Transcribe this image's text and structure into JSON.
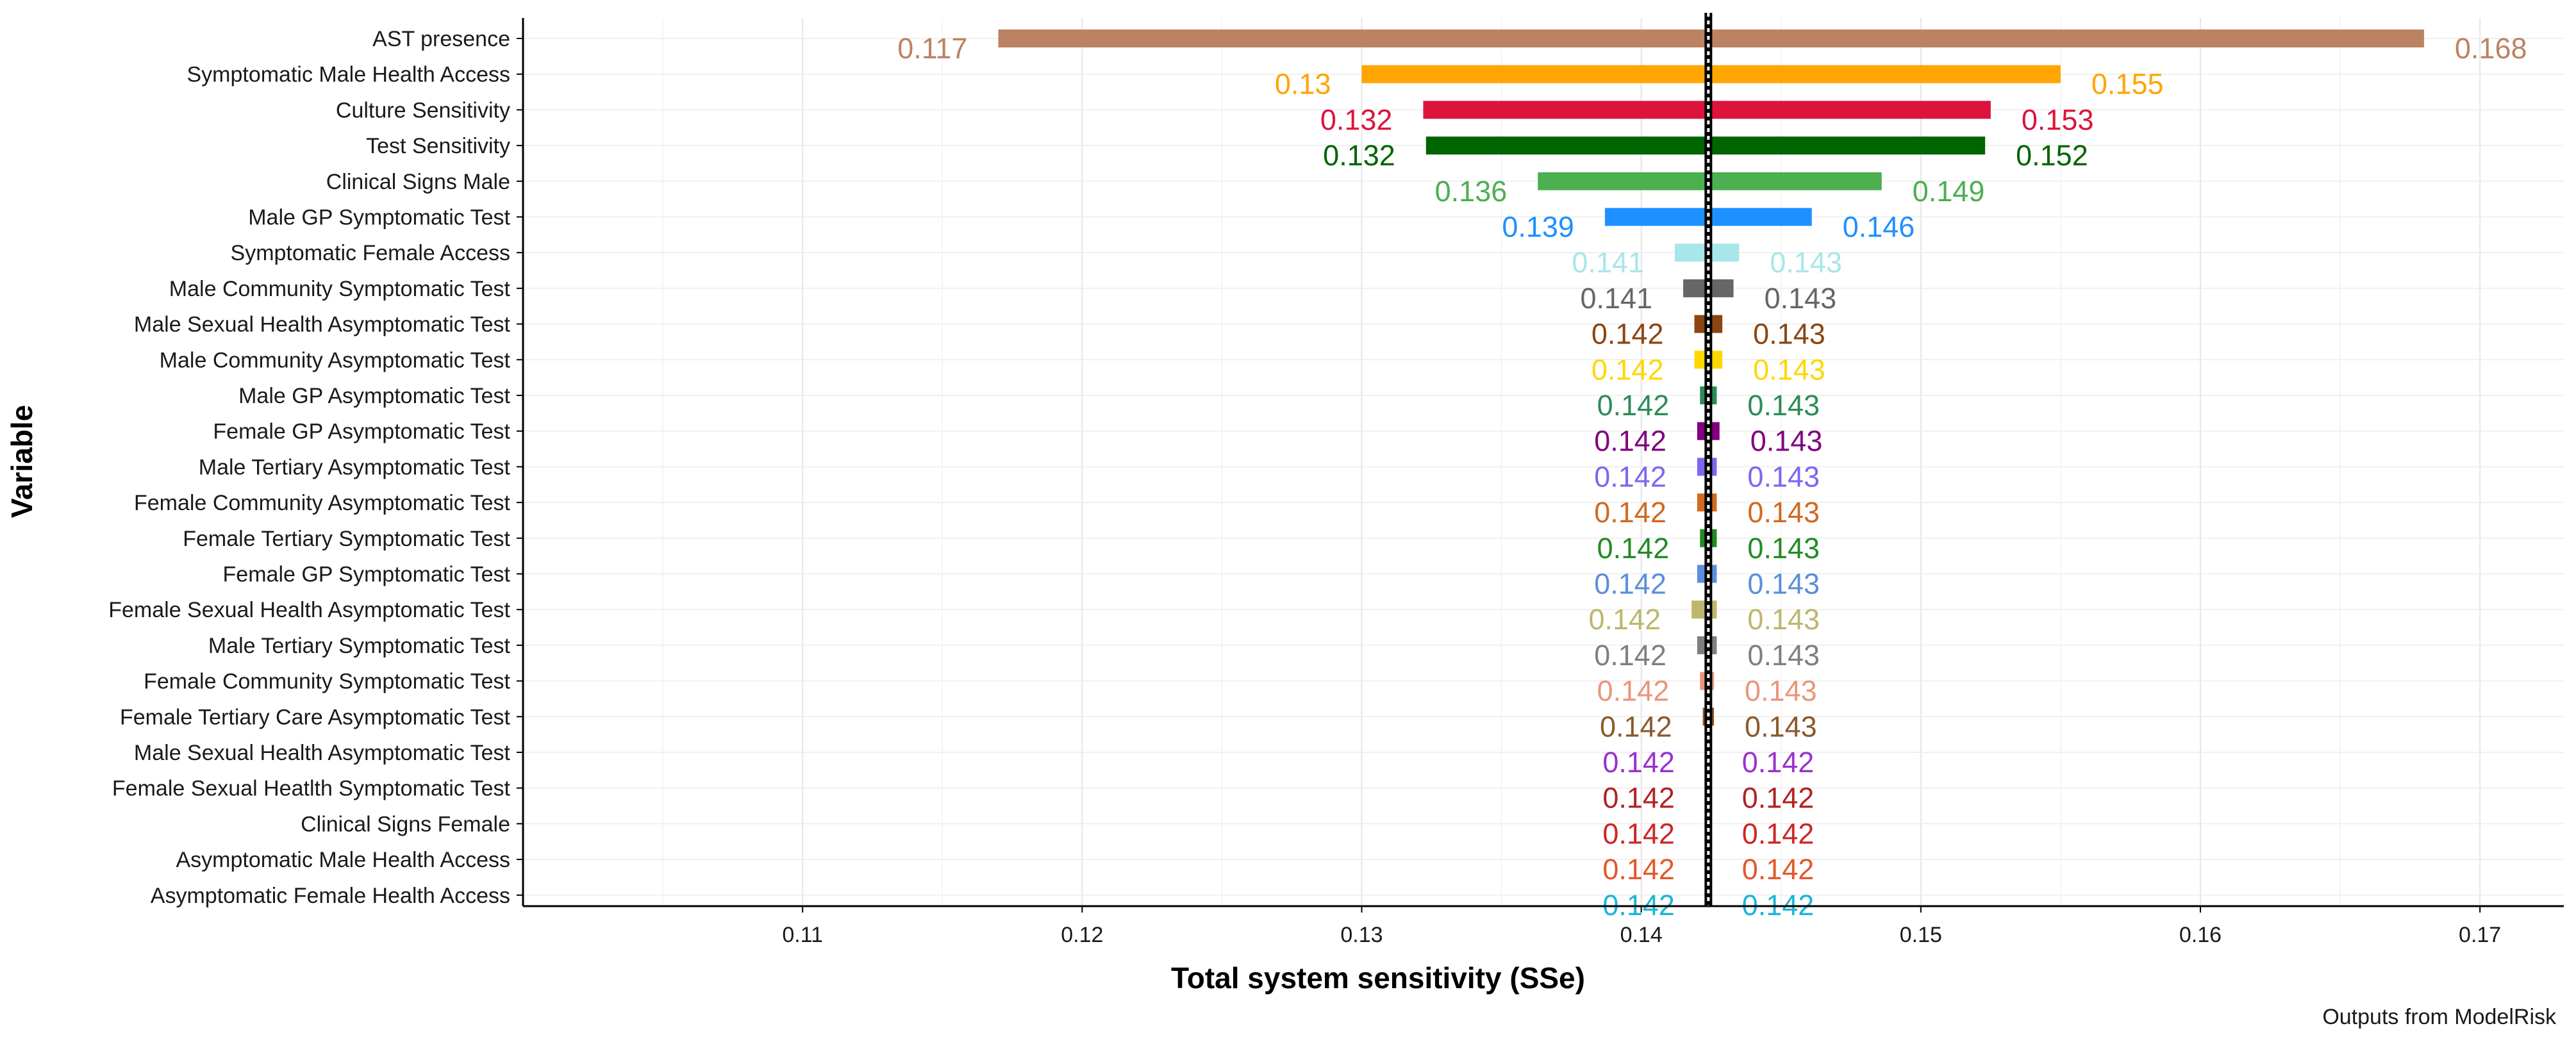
{
  "chart_data": {
    "type": "bar",
    "orientation": "horizontal",
    "subtype": "tornado",
    "xlabel": "Total system sensitivity (SSe)",
    "ylabel": "Variable",
    "caption": "Outputs from ModelRisk",
    "xlim": [
      0.1,
      0.173
    ],
    "xticks": [
      0.11,
      0.12,
      0.13,
      0.14,
      0.15,
      0.16,
      0.17
    ],
    "xtick_labels": [
      "0.11",
      "0.12",
      "0.13",
      "0.14",
      "0.15",
      "0.16",
      "0.17"
    ],
    "baseline": 0.1424,
    "grid": true,
    "bars": [
      {
        "variable": "AST presence",
        "low": 0.117,
        "high": 0.168,
        "low_label": "0.117",
        "high_label": "0.168",
        "color": "#BC8264"
      },
      {
        "variable": "Symptomatic Male Health Access",
        "low": 0.13,
        "high": 0.155,
        "low_label": "0.13",
        "high_label": "0.155",
        "color": "#FFA500"
      },
      {
        "variable": "Culture Sensitivity",
        "low": 0.1322,
        "high": 0.1525,
        "low_label": "0.132",
        "high_label": "0.153",
        "color": "#DC143C"
      },
      {
        "variable": "Test Sensitivity",
        "low": 0.1323,
        "high": 0.1523,
        "low_label": "0.132",
        "high_label": "0.152",
        "color": "#006400"
      },
      {
        "variable": "Clinical Signs Male",
        "low": 0.1363,
        "high": 0.1486,
        "low_label": "0.136",
        "high_label": "0.149",
        "color": "#4CAF50"
      },
      {
        "variable": "Male GP Symptomatic Test",
        "low": 0.1387,
        "high": 0.1461,
        "low_label": "0.139",
        "high_label": "0.146",
        "color": "#1E90FF"
      },
      {
        "variable": "Symptomatic Female Access",
        "low": 0.1412,
        "high": 0.1435,
        "low_label": "0.141",
        "high_label": "0.143",
        "color": "#A8E6EA"
      },
      {
        "variable": "Male Community Symptomatic Test",
        "low": 0.1415,
        "high": 0.1433,
        "low_label": "0.141",
        "high_label": "0.143",
        "color": "#666666"
      },
      {
        "variable": "Male Sexual Health Asymptomatic Test",
        "low": 0.1419,
        "high": 0.1429,
        "low_label": "0.142",
        "high_label": "0.143",
        "color": "#8B4513"
      },
      {
        "variable": "Male Community Asymptomatic Test",
        "low": 0.1419,
        "high": 0.1429,
        "low_label": "0.142",
        "high_label": "0.143",
        "color": "#FFD700"
      },
      {
        "variable": "Male GP Asymptomatic Test",
        "low": 0.1421,
        "high": 0.1427,
        "low_label": "0.142",
        "high_label": "0.143",
        "color": "#2E8B57"
      },
      {
        "variable": "Female GP Asymptomatic Test",
        "low": 0.142,
        "high": 0.1428,
        "low_label": "0.142",
        "high_label": "0.143",
        "color": "#800080"
      },
      {
        "variable": "Male Tertiary Asymptomatic Test",
        "low": 0.142,
        "high": 0.1427,
        "low_label": "0.142",
        "high_label": "0.143",
        "color": "#7B68EE"
      },
      {
        "variable": "Female Community Asymptomatic Test",
        "low": 0.142,
        "high": 0.1427,
        "low_label": "0.142",
        "high_label": "0.143",
        "color": "#D2691E"
      },
      {
        "variable": "Female Tertiary Symptomatic Test",
        "low": 0.1421,
        "high": 0.1427,
        "low_label": "0.142",
        "high_label": "0.143",
        "color": "#228B22"
      },
      {
        "variable": "Female GP Symptomatic Test",
        "low": 0.142,
        "high": 0.1427,
        "low_label": "0.142",
        "high_label": "0.143",
        "color": "#5B8FD9"
      },
      {
        "variable": "Female Sexual Health Asymptomatic Test",
        "low": 0.1418,
        "high": 0.1427,
        "low_label": "0.142",
        "high_label": "0.143",
        "color": "#BDB76B"
      },
      {
        "variable": "Male Tertiary Symptomatic Test",
        "low": 0.142,
        "high": 0.1427,
        "low_label": "0.142",
        "high_label": "0.143",
        "color": "#7F7F7F"
      },
      {
        "variable": "Female Community Symptomatic Test",
        "low": 0.1421,
        "high": 0.1426,
        "low_label": "0.142",
        "high_label": "0.143",
        "color": "#E9967A"
      },
      {
        "variable": "Female Tertiary Care Asymptomatic Test",
        "low": 0.1422,
        "high": 0.1426,
        "low_label": "0.142",
        "high_label": "0.143",
        "color": "#8B5A2B"
      },
      {
        "variable": "Male Sexual Health Asymptomatic Test",
        "low": 0.1423,
        "high": 0.1425,
        "low_label": "0.142",
        "high_label": "0.142",
        "color": "#9932CC"
      },
      {
        "variable": "Female Sexual Heatlth Symptomatic Test",
        "low": 0.1423,
        "high": 0.1425,
        "low_label": "0.142",
        "high_label": "0.142",
        "color": "#B22222"
      },
      {
        "variable": "Clinical Signs Female",
        "low": 0.1423,
        "high": 0.1425,
        "low_label": "0.142",
        "high_label": "0.142",
        "color": "#CD2626"
      },
      {
        "variable": "Asymptomatic Male Health Access",
        "low": 0.1423,
        "high": 0.1425,
        "low_label": "0.142",
        "high_label": "0.142",
        "color": "#E2582C"
      },
      {
        "variable": "Asymptomatic Female Health Access",
        "low": 0.1423,
        "high": 0.1425,
        "low_label": "0.142",
        "high_label": "0.142",
        "color": "#1EB4D8"
      }
    ]
  }
}
